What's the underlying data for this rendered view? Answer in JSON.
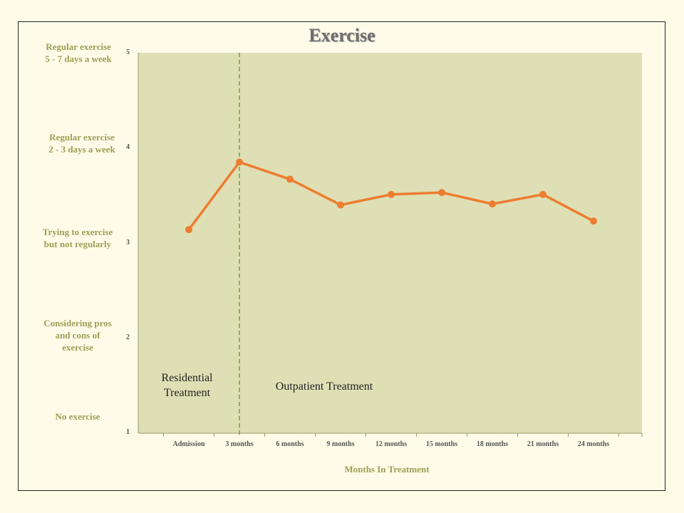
{
  "chart_data": {
    "type": "line",
    "title": "Exercise",
    "xlabel": "Months In Treatment",
    "ylabel": "",
    "ylim": [
      1,
      5
    ],
    "categories": [
      "Admission",
      "3 months",
      "6 months",
      "9 months",
      "12 months",
      "15 months",
      "18 months",
      "21 months",
      "24 months"
    ],
    "values": [
      3.14,
      3.85,
      3.67,
      3.4,
      3.51,
      3.53,
      3.41,
      3.51,
      3.23
    ],
    "y_ticks": [
      "1",
      "2",
      "3",
      "4",
      "5"
    ],
    "level_labels": [
      {
        "value": 5,
        "text": "Regular exercise\n5 - 7 days a week"
      },
      {
        "value": 4,
        "text": "Regular exercise\n2 - 3 days a week"
      },
      {
        "value": 3,
        "text": "Trying to exercise\nbut not regularly"
      },
      {
        "value": 2,
        "text": "Considering pros\nand cons of\nexercise"
      },
      {
        "value": 1,
        "text": "No exercise"
      }
    ],
    "divider_at": "3 months",
    "annotations": {
      "residential": "Residential\nTreatment",
      "outpatient": "Outpatient Treatment"
    },
    "colors": {
      "line": "#ed7d31",
      "plot_background": "#dfdfb5",
      "divider": "#6aa33a",
      "label_text": "#9c9e55"
    },
    "grid": false
  }
}
